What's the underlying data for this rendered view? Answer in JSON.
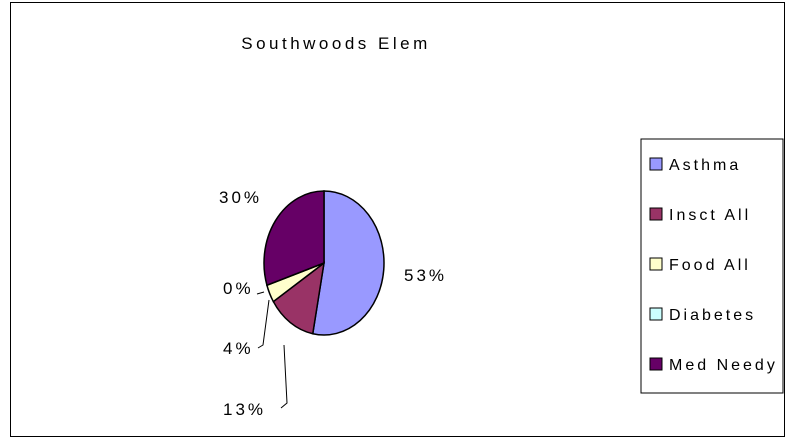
{
  "chart_data": {
    "type": "pie",
    "title": "Southwoods Elem",
    "legend_position": "right",
    "slices": [
      {
        "name": "Asthma",
        "value": 53,
        "label": "53%",
        "color": "#9999ff"
      },
      {
        "name": "Insct All",
        "value": 13,
        "label": "13%",
        "color": "#993366"
      },
      {
        "name": "Food All",
        "value": 4,
        "label": "4%",
        "color": "#ffffcc"
      },
      {
        "name": "Diabetes",
        "value": 0,
        "label": "0%",
        "color": "#ccffff"
      },
      {
        "name": "Med Needy",
        "value": 30,
        "label": "30%",
        "color": "#660066"
      }
    ]
  }
}
